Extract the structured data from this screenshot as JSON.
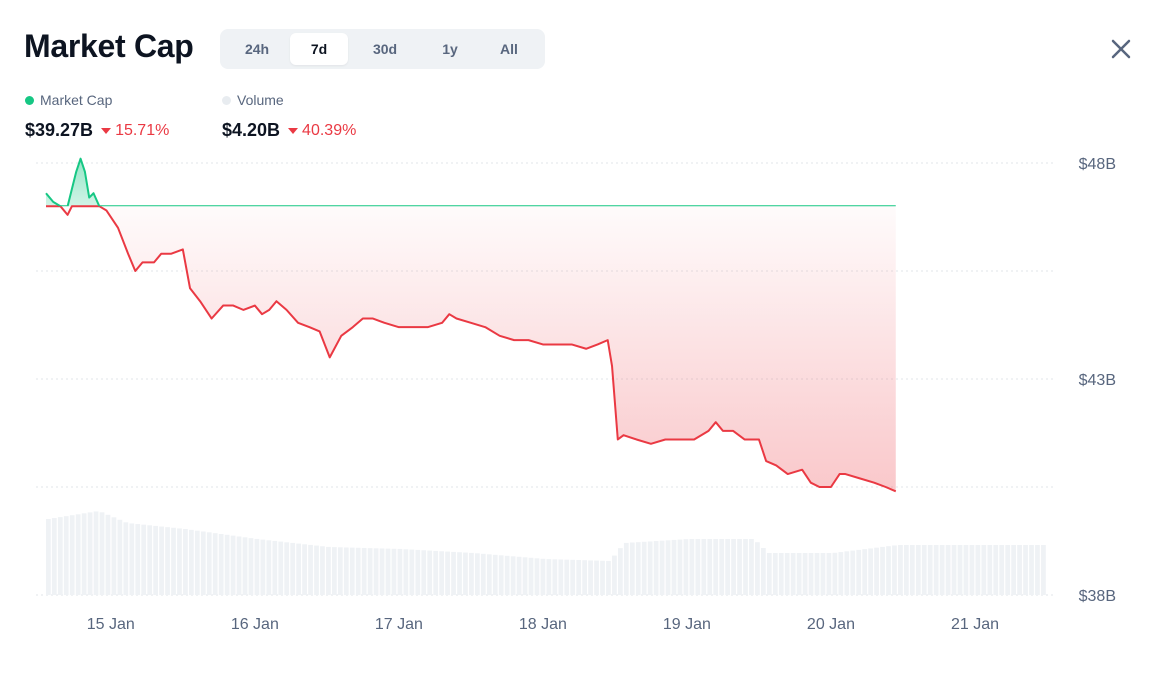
{
  "header": {
    "title": "Market Cap",
    "tabs": [
      {
        "label": "24h",
        "active": false
      },
      {
        "label": "7d",
        "active": true
      },
      {
        "label": "30d",
        "active": false
      },
      {
        "label": "1y",
        "active": false
      },
      {
        "label": "All",
        "active": false
      }
    ],
    "close_icon": "close-icon"
  },
  "legend": {
    "market_cap": {
      "label": "Market Cap",
      "value": "$39.27B",
      "change": "15.71%",
      "direction": "down",
      "color": "#16c784"
    },
    "volume": {
      "label": "Volume",
      "value": "$4.20B",
      "change": "40.39%",
      "direction": "down",
      "color": "#e8ecf0"
    }
  },
  "colors": {
    "up": "#16c784",
    "down": "#ea3943",
    "volume": "#eff2f5",
    "grid": "#e2e6ea",
    "axis_text": "#58667e"
  },
  "chart_data": {
    "type": "line",
    "title": "Market Cap",
    "x_tick_labels": [
      "15 Jan",
      "16 Jan",
      "17 Jan",
      "18 Jan",
      "19 Jan",
      "20 Jan",
      "21 Jan"
    ],
    "y_tick_labels": [
      "$48B",
      "$43B",
      "$38B"
    ],
    "ylim": [
      38,
      48
    ],
    "y_unit": "B USD",
    "x_range_days": [
      14.55,
      21.5
    ],
    "baseline": 47.0,
    "grid": "horizontal dotted",
    "series": [
      {
        "name": "Market Cap",
        "axis": "left",
        "x_unit": "day of Jan",
        "points": [
          [
            14.55,
            47.3
          ],
          [
            14.6,
            47.1
          ],
          [
            14.65,
            47.0
          ],
          [
            14.7,
            46.8
          ],
          [
            14.73,
            47.4
          ],
          [
            14.76,
            47.8
          ],
          [
            14.79,
            48.1
          ],
          [
            14.82,
            47.8
          ],
          [
            14.85,
            47.2
          ],
          [
            14.88,
            47.3
          ],
          [
            14.92,
            47.0
          ],
          [
            14.97,
            46.9
          ],
          [
            15.05,
            46.5
          ],
          [
            15.12,
            45.9
          ],
          [
            15.17,
            45.5
          ],
          [
            15.22,
            45.7
          ],
          [
            15.3,
            45.7
          ],
          [
            15.35,
            45.9
          ],
          [
            15.42,
            45.9
          ],
          [
            15.5,
            46.0
          ],
          [
            15.55,
            45.1
          ],
          [
            15.62,
            44.8
          ],
          [
            15.7,
            44.4
          ],
          [
            15.78,
            44.7
          ],
          [
            15.85,
            44.7
          ],
          [
            15.92,
            44.6
          ],
          [
            16.0,
            44.7
          ],
          [
            16.05,
            44.5
          ],
          [
            16.1,
            44.6
          ],
          [
            16.15,
            44.8
          ],
          [
            16.22,
            44.6
          ],
          [
            16.3,
            44.3
          ],
          [
            16.38,
            44.2
          ],
          [
            16.45,
            44.1
          ],
          [
            16.52,
            43.5
          ],
          [
            16.6,
            44.0
          ],
          [
            16.68,
            44.2
          ],
          [
            16.75,
            44.4
          ],
          [
            16.82,
            44.4
          ],
          [
            16.9,
            44.3
          ],
          [
            17.0,
            44.2
          ],
          [
            17.1,
            44.2
          ],
          [
            17.2,
            44.2
          ],
          [
            17.3,
            44.3
          ],
          [
            17.35,
            44.5
          ],
          [
            17.4,
            44.4
          ],
          [
            17.5,
            44.3
          ],
          [
            17.6,
            44.2
          ],
          [
            17.7,
            44.0
          ],
          [
            17.8,
            43.9
          ],
          [
            17.9,
            43.9
          ],
          [
            18.0,
            43.8
          ],
          [
            18.1,
            43.8
          ],
          [
            18.2,
            43.8
          ],
          [
            18.3,
            43.7
          ],
          [
            18.38,
            43.8
          ],
          [
            18.45,
            43.9
          ],
          [
            18.48,
            43.3
          ],
          [
            18.52,
            41.6
          ],
          [
            18.56,
            41.7
          ],
          [
            18.65,
            41.6
          ],
          [
            18.75,
            41.5
          ],
          [
            18.85,
            41.6
          ],
          [
            18.95,
            41.6
          ],
          [
            19.05,
            41.6
          ],
          [
            19.15,
            41.8
          ],
          [
            19.2,
            42.0
          ],
          [
            19.25,
            41.8
          ],
          [
            19.32,
            41.8
          ],
          [
            19.4,
            41.6
          ],
          [
            19.5,
            41.6
          ],
          [
            19.55,
            41.1
          ],
          [
            19.62,
            41.0
          ],
          [
            19.7,
            40.8
          ],
          [
            19.8,
            40.9
          ],
          [
            19.86,
            40.6
          ],
          [
            19.92,
            40.5
          ],
          [
            20.0,
            40.5
          ],
          [
            20.06,
            40.8
          ],
          [
            20.1,
            40.8
          ],
          [
            20.2,
            40.7
          ],
          [
            20.3,
            40.6
          ],
          [
            20.38,
            40.5
          ],
          [
            20.45,
            40.4
          ]
        ]
      },
      {
        "name": "Volume",
        "axis": "none",
        "x_unit": "day of Jan",
        "relative_levels": [
          [
            14.55,
            0.38
          ],
          [
            14.9,
            0.42
          ],
          [
            15.1,
            0.36
          ],
          [
            15.5,
            0.33
          ],
          [
            16.0,
            0.28
          ],
          [
            16.5,
            0.24
          ],
          [
            17.0,
            0.23
          ],
          [
            17.5,
            0.21
          ],
          [
            18.0,
            0.18
          ],
          [
            18.45,
            0.17
          ],
          [
            18.55,
            0.26
          ],
          [
            19.0,
            0.28
          ],
          [
            19.45,
            0.28
          ],
          [
            19.55,
            0.21
          ],
          [
            20.0,
            0.21
          ],
          [
            20.45,
            0.25
          ]
        ]
      }
    ]
  }
}
